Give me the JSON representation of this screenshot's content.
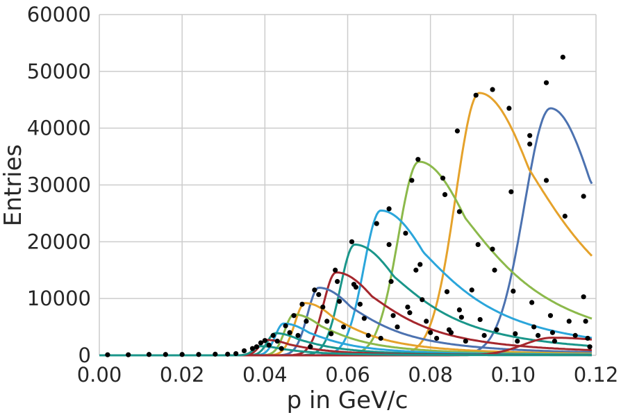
{
  "chart_data": {
    "type": "line",
    "title": "",
    "xlabel": "p in GeV/c",
    "ylabel": "Entries",
    "xlim": [
      0,
      0.12
    ],
    "ylim": [
      0,
      60000
    ],
    "xticks": [
      "0.00",
      "0.02",
      "0.04",
      "0.06",
      "0.08",
      "0.10",
      "0.12"
    ],
    "yticks": [
      "0",
      "10000",
      "20000",
      "30000",
      "40000",
      "50000",
      "60000"
    ],
    "grid": true,
    "legend": "none",
    "series": [
      {
        "color": "#4c72b0",
        "peak_x": 0.109,
        "peak_y": 43500,
        "rise_width": 0.0063,
        "fall_width": 0.0115
      },
      {
        "color": "#e5a22b",
        "peak_x": 0.0918,
        "peak_y": 46200,
        "rise_width": 0.0057,
        "fall_width": 0.0145
      },
      {
        "color": "#8cb94b",
        "peak_x": 0.0772,
        "peak_y": 34100,
        "rise_width": 0.005,
        "fall_width": 0.0135
      },
      {
        "color": "#2ba6db",
        "peak_x": 0.068,
        "peak_y": 25500,
        "rise_width": 0.0041,
        "fall_width": 0.0125
      },
      {
        "color": "#1a968a",
        "peak_x": 0.0617,
        "peak_y": 19500,
        "rise_width": 0.0035,
        "fall_width": 0.0115
      },
      {
        "color": "#a5272d",
        "peak_x": 0.0572,
        "peak_y": 14600,
        "rise_width": 0.0031,
        "fall_width": 0.0105
      },
      {
        "color": "#4c72b0",
        "peak_x": 0.053,
        "peak_y": 11900,
        "rise_width": 0.0027,
        "fall_width": 0.0095
      },
      {
        "color": "#e5a22b",
        "peak_x": 0.0497,
        "peak_y": 9200,
        "rise_width": 0.0025,
        "fall_width": 0.0085
      },
      {
        "color": "#8cb94b",
        "peak_x": 0.047,
        "peak_y": 7200,
        "rise_width": 0.0022,
        "fall_width": 0.008
      },
      {
        "color": "#2ba6db",
        "peak_x": 0.0445,
        "peak_y": 5600,
        "rise_width": 0.002,
        "fall_width": 0.0075
      },
      {
        "color": "#1a968a",
        "peak_x": 0.0425,
        "peak_y": 3900,
        "rise_width": 0.0019,
        "fall_width": 0.007
      },
      {
        "color": "#a5272d",
        "peak_x": 0.0405,
        "peak_y": 2700,
        "rise_width": 0.0018,
        "fall_width": 0.0065
      },
      {
        "color": "#a5272d",
        "peak_x": 0.1095,
        "peak_y": 3100,
        "rise_width": 0.007,
        "fall_width": 0.02
      },
      {
        "color": "#1a968a",
        "peak_x": 0.039,
        "peak_y": 1600,
        "rise_width": 0.0017,
        "fall_width": 0.006
      }
    ],
    "points": [
      [
        0.002,
        100
      ],
      [
        0.007,
        100
      ],
      [
        0.012,
        150
      ],
      [
        0.016,
        150
      ],
      [
        0.02,
        150
      ],
      [
        0.024,
        150
      ],
      [
        0.028,
        200
      ],
      [
        0.031,
        200
      ],
      [
        0.033,
        300
      ],
      [
        0.035,
        800
      ],
      [
        0.037,
        1200
      ],
      [
        0.038,
        1500
      ],
      [
        0.039,
        2200
      ],
      [
        0.04,
        2600
      ],
      [
        0.041,
        1800
      ],
      [
        0.042,
        3500
      ],
      [
        0.043,
        2500
      ],
      [
        0.044,
        1200
      ],
      [
        0.045,
        5200
      ],
      [
        0.046,
        4000
      ],
      [
        0.047,
        7000
      ],
      [
        0.048,
        3500
      ],
      [
        0.049,
        9000
      ],
      [
        0.05,
        6000
      ],
      [
        0.051,
        1500
      ],
      [
        0.052,
        11500
      ],
      [
        0.053,
        10700
      ],
      [
        0.054,
        8500
      ],
      [
        0.055,
        6000
      ],
      [
        0.056,
        3800
      ],
      [
        0.057,
        15000
      ],
      [
        0.0575,
        13000
      ],
      [
        0.058,
        9500
      ],
      [
        0.059,
        5000
      ],
      [
        0.061,
        20000
      ],
      [
        0.0615,
        12500
      ],
      [
        0.062,
        12000
      ],
      [
        0.063,
        9000
      ],
      [
        0.064,
        6500
      ],
      [
        0.065,
        3500
      ],
      [
        0.067,
        23200
      ],
      [
        0.068,
        3000
      ],
      [
        0.07,
        25800
      ],
      [
        0.07,
        19500
      ],
      [
        0.0705,
        13000
      ],
      [
        0.071,
        7000
      ],
      [
        0.072,
        5000
      ],
      [
        0.074,
        21500
      ],
      [
        0.0745,
        8500
      ],
      [
        0.075,
        7500
      ],
      [
        0.0755,
        30800
      ],
      [
        0.0765,
        15000
      ],
      [
        0.077,
        34500
      ],
      [
        0.0775,
        16000
      ],
      [
        0.078,
        9800
      ],
      [
        0.079,
        6000
      ],
      [
        0.08,
        4000
      ],
      [
        0.0815,
        3000
      ],
      [
        0.083,
        31200
      ],
      [
        0.0835,
        28300
      ],
      [
        0.084,
        11200
      ],
      [
        0.0845,
        4500
      ],
      [
        0.085,
        4000
      ],
      [
        0.0865,
        39500
      ],
      [
        0.087,
        25300
      ],
      [
        0.087,
        8000
      ],
      [
        0.0875,
        6700
      ],
      [
        0.0885,
        2500
      ],
      [
        0.09,
        11500
      ],
      [
        0.091,
        45800
      ],
      [
        0.0915,
        19500
      ],
      [
        0.092,
        6300
      ],
      [
        0.093,
        3500
      ],
      [
        0.095,
        46800
      ],
      [
        0.095,
        18700
      ],
      [
        0.0955,
        15000
      ],
      [
        0.096,
        4500
      ],
      [
        0.099,
        43500
      ],
      [
        0.0995,
        28800
      ],
      [
        0.1,
        11300
      ],
      [
        0.1005,
        3800
      ],
      [
        0.101,
        2500
      ],
      [
        0.104,
        38700
      ],
      [
        0.104,
        37200
      ],
      [
        0.1045,
        9300
      ],
      [
        0.105,
        5000
      ],
      [
        0.106,
        3500
      ],
      [
        0.108,
        48000
      ],
      [
        0.108,
        30800
      ],
      [
        0.109,
        7000
      ],
      [
        0.1095,
        4000
      ],
      [
        0.11,
        2500
      ],
      [
        0.112,
        52500
      ],
      [
        0.1125,
        24500
      ],
      [
        0.1135,
        6000
      ],
      [
        0.115,
        3500
      ],
      [
        0.117,
        28000
      ],
      [
        0.117,
        10300
      ],
      [
        0.1175,
        6000
      ],
      [
        0.118,
        3000
      ],
      [
        0.1185,
        1500
      ]
    ]
  }
}
